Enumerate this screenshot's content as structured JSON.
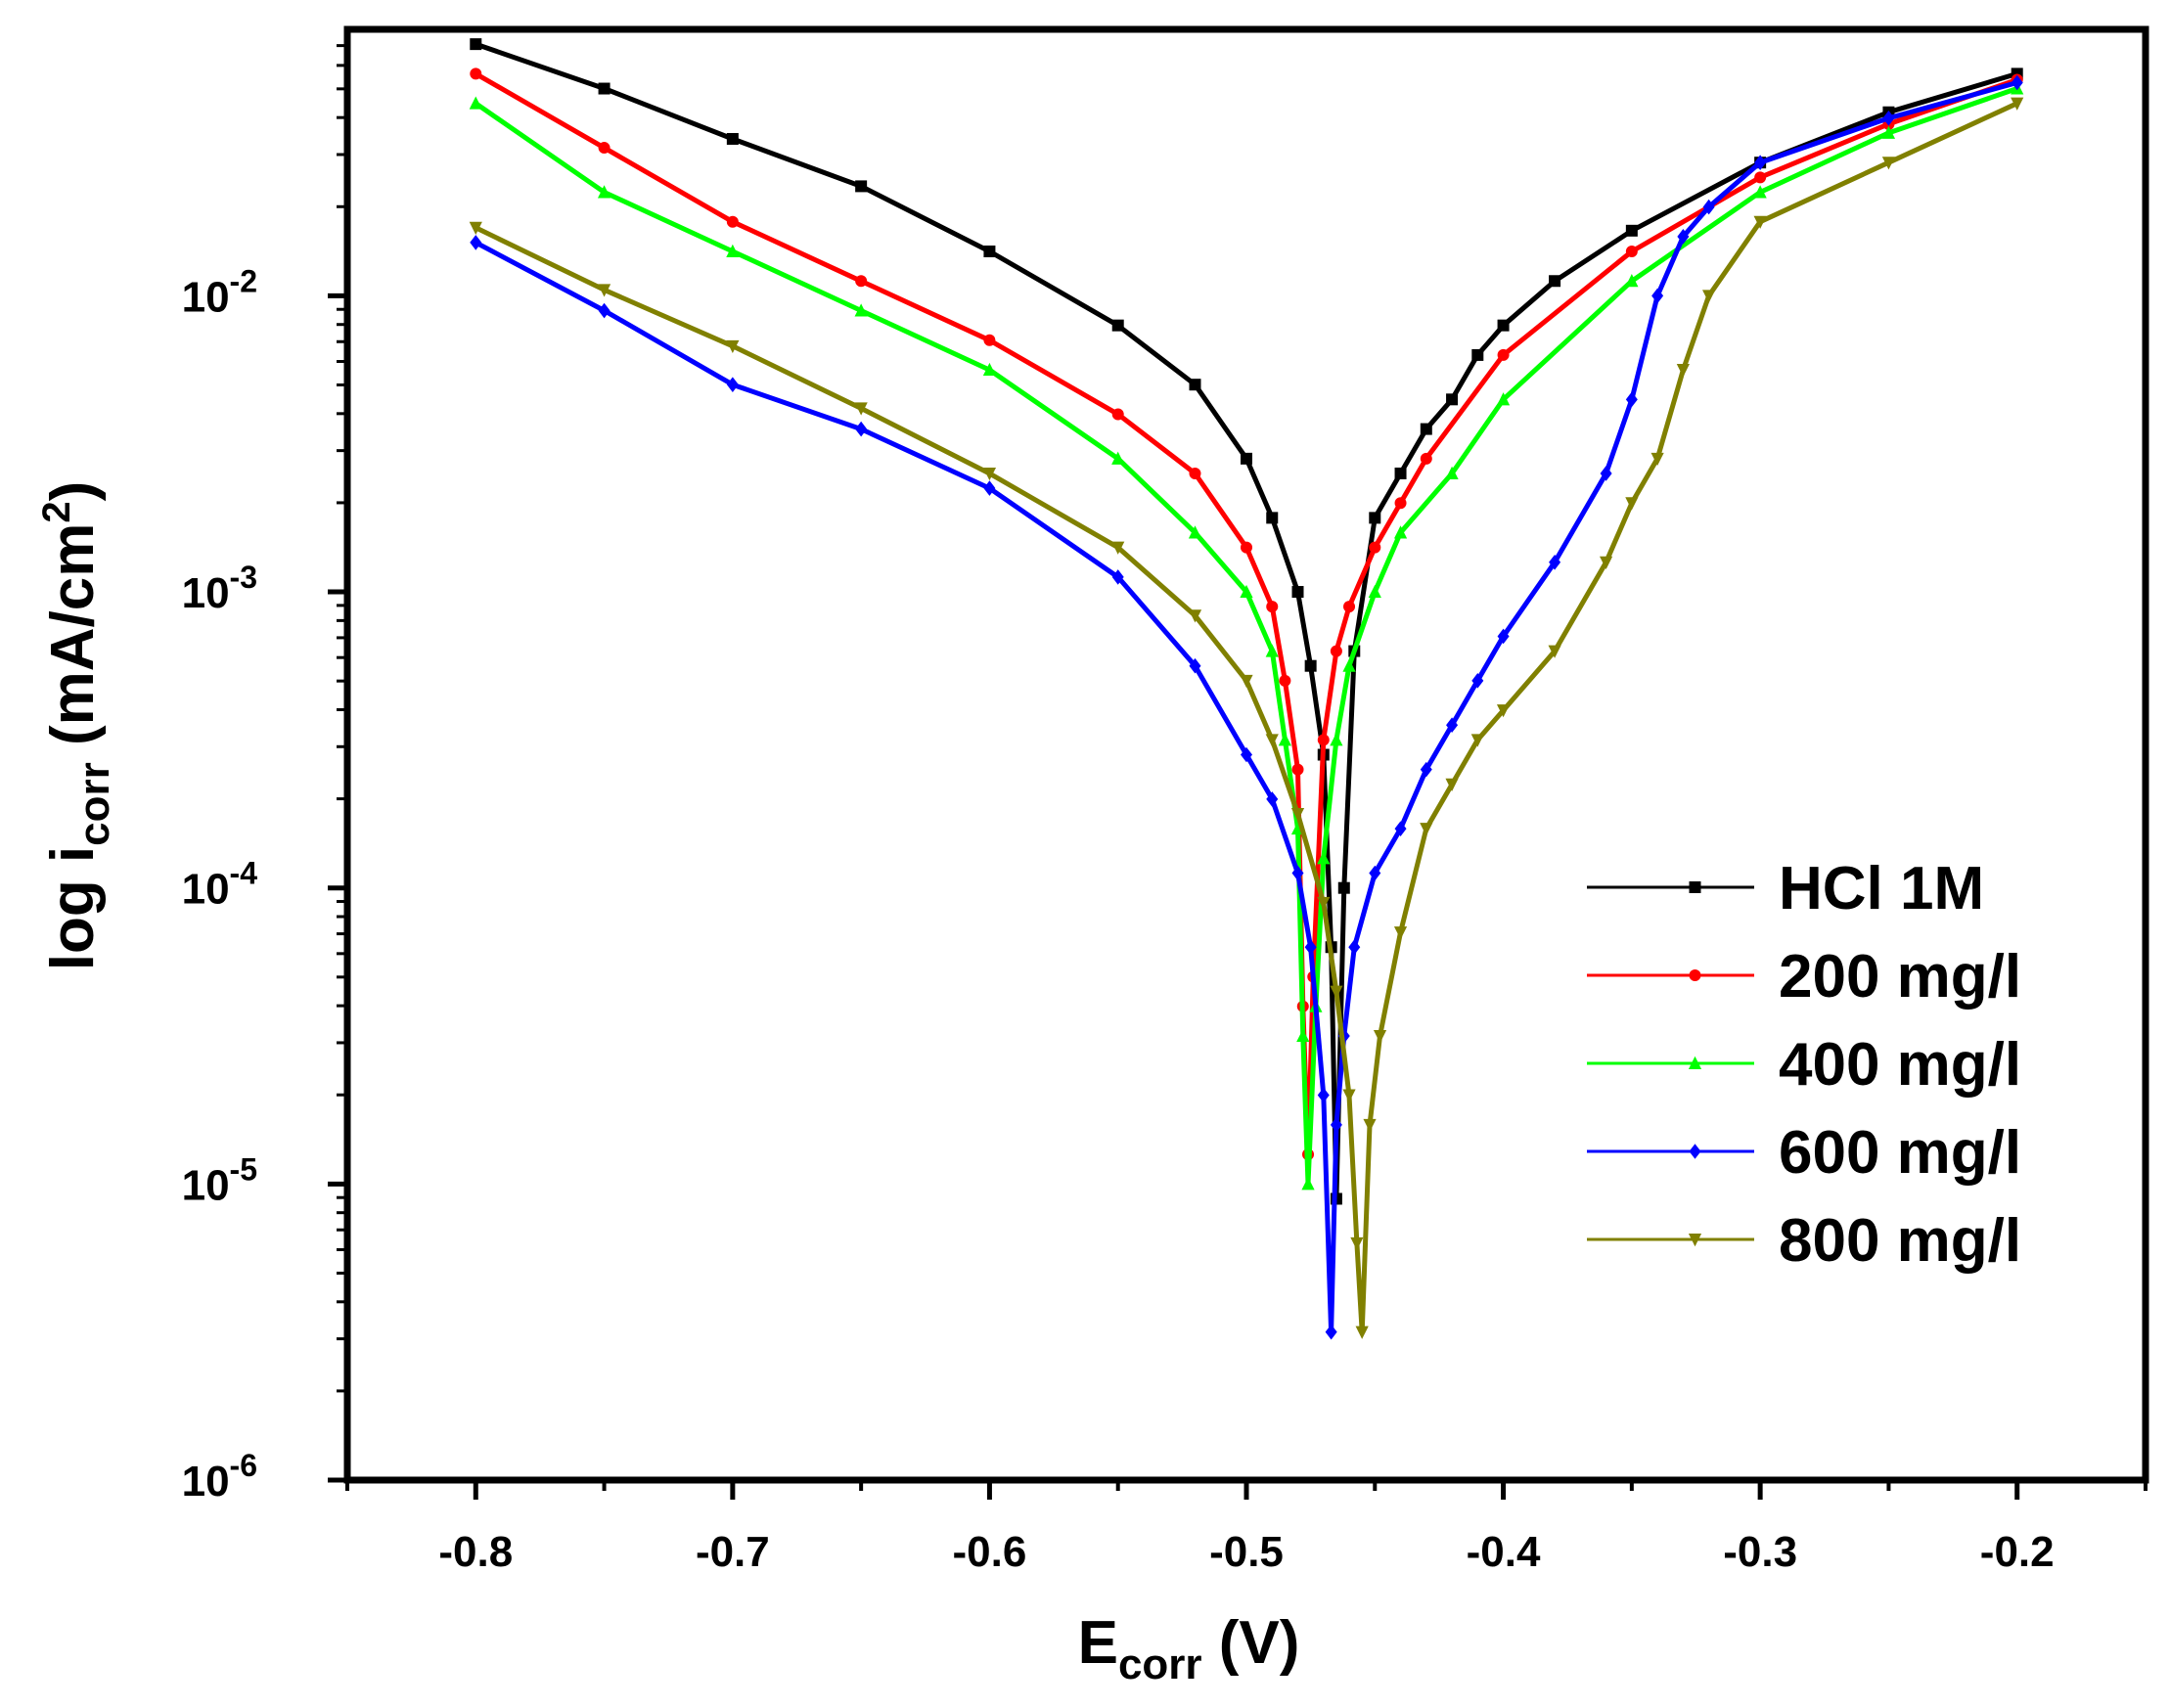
{
  "chart_data": {
    "type": "line",
    "title": "",
    "xlabel": {
      "main": "E",
      "sub": "corr",
      "unit": " (V)"
    },
    "ylabel": {
      "main": "log i",
      "sub": "corr",
      "unit_pre": " (mA/cm",
      "unit_sup": "2",
      "unit_post": ")"
    },
    "xlim": [
      -0.85,
      -0.15
    ],
    "ylim_log10": [
      -6,
      -1.1
    ],
    "x_ticks": [
      {
        "value": -0.8,
        "label": "-0.8"
      },
      {
        "value": -0.7,
        "label": "-0.7"
      },
      {
        "value": -0.6,
        "label": "-0.6"
      },
      {
        "value": -0.5,
        "label": "-0.5"
      },
      {
        "value": -0.4,
        "label": "-0.4"
      },
      {
        "value": -0.3,
        "label": "-0.3"
      },
      {
        "value": -0.2,
        "label": "-0.2"
      }
    ],
    "y_ticks": [
      {
        "exp": -6,
        "base": "10",
        "sup": "-6"
      },
      {
        "exp": -5,
        "base": "10",
        "sup": "-5"
      },
      {
        "exp": -4,
        "base": "10",
        "sup": "-4"
      },
      {
        "exp": -3,
        "base": "10",
        "sup": "-3"
      },
      {
        "exp": -2,
        "base": "10",
        "sup": "-2"
      }
    ],
    "grid": false,
    "legend_position": "bottom-right",
    "series": [
      {
        "name": "HCl 1M",
        "color": "#000000",
        "marker": "square",
        "points": [
          [
            -0.8,
            -1.15
          ],
          [
            -0.75,
            -1.3
          ],
          [
            -0.7,
            -1.47
          ],
          [
            -0.65,
            -1.63
          ],
          [
            -0.6,
            -1.85
          ],
          [
            -0.55,
            -2.1
          ],
          [
            -0.52,
            -2.3
          ],
          [
            -0.5,
            -2.55
          ],
          [
            -0.49,
            -2.75
          ],
          [
            -0.48,
            -3.0
          ],
          [
            -0.475,
            -3.25
          ],
          [
            -0.47,
            -3.55
          ],
          [
            -0.467,
            -4.2
          ],
          [
            -0.465,
            -5.05
          ],
          [
            -0.462,
            -4.0
          ],
          [
            -0.458,
            -3.2
          ],
          [
            -0.45,
            -2.75
          ],
          [
            -0.44,
            -2.6
          ],
          [
            -0.43,
            -2.45
          ],
          [
            -0.42,
            -2.35
          ],
          [
            -0.41,
            -2.2
          ],
          [
            -0.4,
            -2.1
          ],
          [
            -0.38,
            -1.95
          ],
          [
            -0.35,
            -1.78
          ],
          [
            -0.3,
            -1.55
          ],
          [
            -0.25,
            -1.38
          ],
          [
            -0.2,
            -1.25
          ]
        ]
      },
      {
        "name": "200 mg/l",
        "color": "#ff0000",
        "marker": "circle",
        "points": [
          [
            -0.8,
            -1.25
          ],
          [
            -0.75,
            -1.5
          ],
          [
            -0.7,
            -1.75
          ],
          [
            -0.65,
            -1.95
          ],
          [
            -0.6,
            -2.15
          ],
          [
            -0.55,
            -2.4
          ],
          [
            -0.52,
            -2.6
          ],
          [
            -0.5,
            -2.85
          ],
          [
            -0.49,
            -3.05
          ],
          [
            -0.485,
            -3.3
          ],
          [
            -0.48,
            -3.6
          ],
          [
            -0.478,
            -4.4
          ],
          [
            -0.476,
            -4.9
          ],
          [
            -0.474,
            -4.3
          ],
          [
            -0.47,
            -3.5
          ],
          [
            -0.465,
            -3.2
          ],
          [
            -0.46,
            -3.05
          ],
          [
            -0.45,
            -2.85
          ],
          [
            -0.44,
            -2.7
          ],
          [
            -0.43,
            -2.55
          ],
          [
            -0.4,
            -2.2
          ],
          [
            -0.35,
            -1.85
          ],
          [
            -0.3,
            -1.6
          ],
          [
            -0.25,
            -1.42
          ],
          [
            -0.2,
            -1.27
          ]
        ]
      },
      {
        "name": "400 mg/l",
        "color": "#00ff00",
        "marker": "triangle-up",
        "points": [
          [
            -0.8,
            -1.35
          ],
          [
            -0.75,
            -1.65
          ],
          [
            -0.7,
            -1.85
          ],
          [
            -0.65,
            -2.05
          ],
          [
            -0.6,
            -2.25
          ],
          [
            -0.55,
            -2.55
          ],
          [
            -0.52,
            -2.8
          ],
          [
            -0.5,
            -3.0
          ],
          [
            -0.49,
            -3.2
          ],
          [
            -0.485,
            -3.5
          ],
          [
            -0.48,
            -3.8
          ],
          [
            -0.478,
            -4.5
          ],
          [
            -0.476,
            -5.0
          ],
          [
            -0.473,
            -4.4
          ],
          [
            -0.47,
            -3.9
          ],
          [
            -0.465,
            -3.5
          ],
          [
            -0.46,
            -3.25
          ],
          [
            -0.45,
            -3.0
          ],
          [
            -0.44,
            -2.8
          ],
          [
            -0.42,
            -2.6
          ],
          [
            -0.4,
            -2.35
          ],
          [
            -0.35,
            -1.95
          ],
          [
            -0.3,
            -1.65
          ],
          [
            -0.25,
            -1.45
          ],
          [
            -0.2,
            -1.3
          ]
        ]
      },
      {
        "name": "600 mg/l",
        "color": "#0000ff",
        "marker": "diamond",
        "points": [
          [
            -0.8,
            -1.82
          ],
          [
            -0.75,
            -2.05
          ],
          [
            -0.7,
            -2.3
          ],
          [
            -0.65,
            -2.45
          ],
          [
            -0.6,
            -2.65
          ],
          [
            -0.55,
            -2.95
          ],
          [
            -0.52,
            -3.25
          ],
          [
            -0.5,
            -3.55
          ],
          [
            -0.49,
            -3.7
          ],
          [
            -0.48,
            -3.95
          ],
          [
            -0.475,
            -4.2
          ],
          [
            -0.47,
            -4.7
          ],
          [
            -0.467,
            -5.5
          ],
          [
            -0.465,
            -4.8
          ],
          [
            -0.462,
            -4.5
          ],
          [
            -0.458,
            -4.2
          ],
          [
            -0.45,
            -3.95
          ],
          [
            -0.44,
            -3.8
          ],
          [
            -0.43,
            -3.6
          ],
          [
            -0.42,
            -3.45
          ],
          [
            -0.41,
            -3.3
          ],
          [
            -0.4,
            -3.15
          ],
          [
            -0.38,
            -2.9
          ],
          [
            -0.36,
            -2.6
          ],
          [
            -0.35,
            -2.35
          ],
          [
            -0.34,
            -2.0
          ],
          [
            -0.33,
            -1.8
          ],
          [
            -0.32,
            -1.7
          ],
          [
            -0.3,
            -1.55
          ],
          [
            -0.25,
            -1.4
          ],
          [
            -0.2,
            -1.28
          ]
        ]
      },
      {
        "name": "800 mg/l",
        "color": "#808000",
        "marker": "triangle-down",
        "points": [
          [
            -0.8,
            -1.77
          ],
          [
            -0.75,
            -1.98
          ],
          [
            -0.7,
            -2.17
          ],
          [
            -0.65,
            -2.38
          ],
          [
            -0.6,
            -2.6
          ],
          [
            -0.55,
            -2.85
          ],
          [
            -0.52,
            -3.08
          ],
          [
            -0.5,
            -3.3
          ],
          [
            -0.49,
            -3.5
          ],
          [
            -0.48,
            -3.75
          ],
          [
            -0.47,
            -4.05
          ],
          [
            -0.465,
            -4.35
          ],
          [
            -0.46,
            -4.7
          ],
          [
            -0.457,
            -5.2
          ],
          [
            -0.455,
            -5.5
          ],
          [
            -0.452,
            -4.8
          ],
          [
            -0.448,
            -4.5
          ],
          [
            -0.44,
            -4.15
          ],
          [
            -0.43,
            -3.8
          ],
          [
            -0.42,
            -3.65
          ],
          [
            -0.41,
            -3.5
          ],
          [
            -0.4,
            -3.4
          ],
          [
            -0.38,
            -3.2
          ],
          [
            -0.36,
            -2.9
          ],
          [
            -0.35,
            -2.7
          ],
          [
            -0.34,
            -2.55
          ],
          [
            -0.33,
            -2.25
          ],
          [
            -0.32,
            -2.0
          ],
          [
            -0.3,
            -1.75
          ],
          [
            -0.25,
            -1.55
          ],
          [
            -0.2,
            -1.35
          ]
        ]
      }
    ]
  }
}
